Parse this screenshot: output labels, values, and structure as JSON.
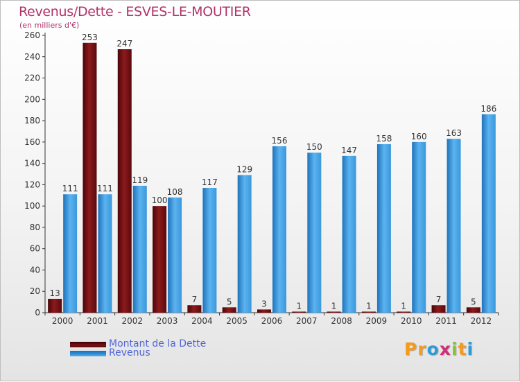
{
  "title": "Revenus/Dette - ESVES-LE-MOUTIER",
  "subtitle": "(en milliers d'€)",
  "colors": {
    "dette": "#7a0f12",
    "revenus": "#2f8fd8",
    "title": "#b0336a",
    "legend_text": "#4f66d8"
  },
  "legend": [
    {
      "label": "Montant de la Dette",
      "color": "#7a0f12"
    },
    {
      "label": "Revenus",
      "color": "#2f8fd8"
    }
  ],
  "brand": {
    "letters": [
      "P",
      "r",
      "o",
      "x",
      "i",
      "t",
      "i"
    ],
    "colors": [
      "#f59a1c",
      "#f59a1c",
      "#2e9bd6",
      "#d22b7a",
      "#86c23c",
      "#f59a1c",
      "#2e9bd6"
    ]
  },
  "chart_data": {
    "type": "bar",
    "categories": [
      "2000",
      "2001",
      "2002",
      "2003",
      "2004",
      "2005",
      "2006",
      "2007",
      "2008",
      "2009",
      "2010",
      "2011",
      "2012"
    ],
    "series": [
      {
        "name": "Montant de la Dette",
        "values": [
          13,
          253,
          247,
          100,
          7,
          5,
          3,
          1,
          1,
          1,
          1,
          7,
          5
        ]
      },
      {
        "name": "Revenus",
        "values": [
          111,
          111,
          119,
          108,
          117,
          129,
          156,
          150,
          147,
          158,
          160,
          163,
          186
        ]
      }
    ],
    "y_ticks": [
      0,
      20,
      40,
      60,
      80,
      100,
      120,
      140,
      160,
      180,
      200,
      220,
      240,
      260
    ],
    "ylim": [
      0,
      260
    ],
    "grid": false,
    "legend_position": "bottom-left"
  }
}
